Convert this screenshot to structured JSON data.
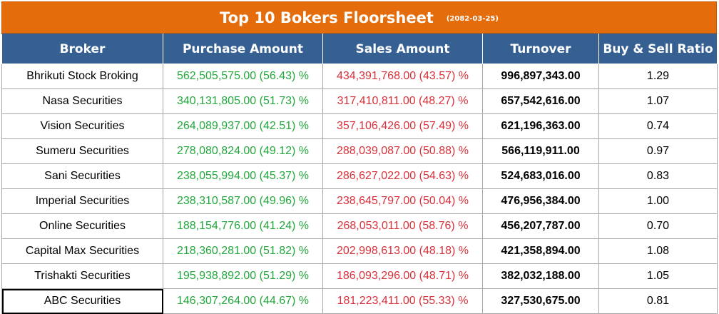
{
  "title": "Top 10 Bokers Floorsheet",
  "date": "(2082-03-25)",
  "columns": [
    "Broker",
    "Purchase Amount",
    "Sales Amount",
    "Turnover",
    "Buy & Sell Ratio"
  ],
  "rows": [
    {
      "broker": "Bhrikuti Stock Broking",
      "purchase": "562,505,575.00 (56.43) %",
      "sales": "434,391,768.00 (43.57) %",
      "turnover": "996,897,343.00",
      "ratio": "1.29"
    },
    {
      "broker": "Nasa Securities",
      "purchase": "340,131,805.00 (51.73) %",
      "sales": "317,410,811.00 (48.27) %",
      "turnover": "657,542,616.00",
      "ratio": "1.07"
    },
    {
      "broker": "Vision Securities",
      "purchase": "264,089,937.00 (42.51) %",
      "sales": "357,106,426.00 (57.49) %",
      "turnover": "621,196,363.00",
      "ratio": "0.74"
    },
    {
      "broker": "Sumeru Securities",
      "purchase": "278,080,824.00 (49.12) %",
      "sales": "288,039,087.00 (50.88) %",
      "turnover": "566,119,911.00",
      "ratio": "0.97"
    },
    {
      "broker": "Sani Securities",
      "purchase": "238,055,994.00 (45.37) %",
      "sales": "286,627,022.00 (54.63) %",
      "turnover": "524,683,016.00",
      "ratio": "0.83"
    },
    {
      "broker": "Imperial Securities",
      "purchase": "238,310,587.00 (49.96) %",
      "sales": "238,645,797.00 (50.04) %",
      "turnover": "476,956,384.00",
      "ratio": "1.00"
    },
    {
      "broker": "Online Securities",
      "purchase": "188,154,776.00 (41.24) %",
      "sales": "268,053,011.00 (58.76) %",
      "turnover": "456,207,787.00",
      "ratio": "0.70"
    },
    {
      "broker": "Capital Max Securities",
      "purchase": "218,360,281.00 (51.82) %",
      "sales": "202,998,613.00 (48.18) %",
      "turnover": "421,358,894.00",
      "ratio": "1.08"
    },
    {
      "broker": "Trishakti Securities",
      "purchase": "195,938,892.00 (51.29) %",
      "sales": "186,093,296.00 (48.71) %",
      "turnover": "382,032,188.00",
      "ratio": "1.05"
    },
    {
      "broker": "ABC Securities",
      "purchase": "146,307,264.00 (44.67) %",
      "sales": "181,223,411.00 (55.33) %",
      "turnover": "327,530,675.00",
      "ratio": "0.81"
    }
  ],
  "colors": {
    "banner": "#e46c0a",
    "header": "#366092",
    "buy": "#22a83c",
    "sell": "#d9303a"
  }
}
